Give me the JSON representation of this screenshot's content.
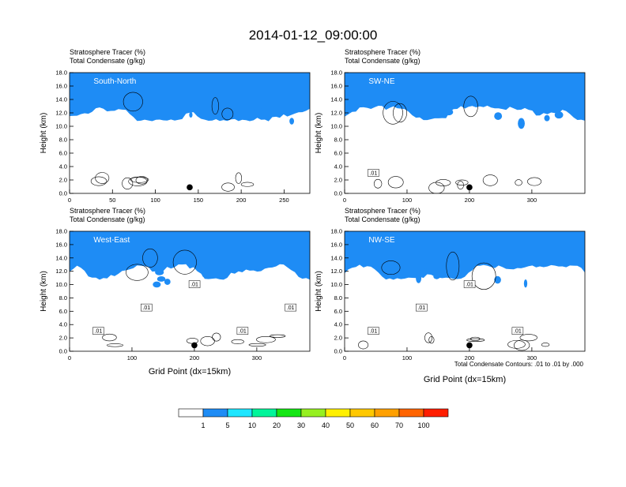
{
  "title": "2014-01-12_09:00:00",
  "panel_field_label_1": "Stratosphere Tracer   (%)",
  "panel_field_label_2": "Total Condensate   (g/kg)",
  "ylabel": "Height (km)",
  "xlabel": "Grid Point (dx=15km)",
  "contour_note": "Total Condensate Contours: .01 to .01 by .000",
  "colorbar": {
    "colors": [
      "#ffffff",
      "#1e8cf5",
      "#1ee6ff",
      "#00f59a",
      "#14e614",
      "#96f020",
      "#fff000",
      "#ffc800",
      "#ffa000",
      "#ff6400",
      "#ff1e00"
    ],
    "labels": [
      "1",
      "5",
      "10",
      "20",
      "30",
      "40",
      "50",
      "60",
      "70",
      "100"
    ]
  },
  "chart_data": [
    {
      "type": "heatmap",
      "title": "South-North",
      "xlim": [
        0,
        280
      ],
      "ylim": [
        0,
        18
      ],
      "xticks": [
        0,
        50,
        100,
        150,
        200,
        250
      ],
      "yticks": [
        "0.0",
        "2.0",
        "4.0",
        "6.0",
        "8.0",
        "10.0",
        "12.0",
        "14.0",
        "16.0",
        "18.0"
      ],
      "marker": {
        "x": 140,
        "y": 0.9
      },
      "contour_labels": []
    },
    {
      "type": "heatmap",
      "title": "SW-NE",
      "xlim": [
        0,
        385
      ],
      "ylim": [
        0,
        18
      ],
      "xticks": [
        0,
        100,
        200,
        300
      ],
      "yticks": [
        "0.0",
        "2.0",
        "4.0",
        "6.0",
        "8.0",
        "10.0",
        "12.0",
        "14.0",
        "16.0",
        "18.0"
      ],
      "marker": {
        "x": 200,
        "y": 0.9
      },
      "contour_labels": [
        ".01"
      ]
    },
    {
      "type": "heatmap",
      "title": "West-East",
      "xlim": [
        0,
        385
      ],
      "ylim": [
        0,
        18
      ],
      "xticks": [
        0,
        100,
        200,
        300
      ],
      "yticks": [
        "0.0",
        "2.0",
        "4.0",
        "6.0",
        "8.0",
        "10.0",
        "12.0",
        "14.0",
        "16.0",
        "18.0"
      ],
      "marker": {
        "x": 200,
        "y": 0.9
      },
      "contour_labels": [
        ".01",
        ".01",
        ".01",
        ".01",
        ".01"
      ]
    },
    {
      "type": "heatmap",
      "title": "NW-SE",
      "xlim": [
        0,
        385
      ],
      "ylim": [
        0,
        18
      ],
      "xticks": [
        0,
        100,
        200,
        300
      ],
      "yticks": [
        "0.0",
        "2.0",
        "4.0",
        "6.0",
        "8.0",
        "10.0",
        "12.0",
        "14.0",
        "16.0",
        "18.0"
      ],
      "marker": {
        "x": 200,
        "y": 0.9
      },
      "contour_labels": [
        ".01",
        ".01",
        ".01",
        ".01"
      ]
    }
  ]
}
